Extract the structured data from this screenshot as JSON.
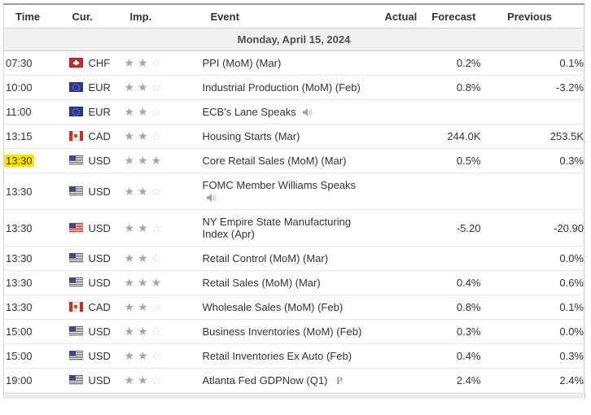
{
  "table": {
    "columns": {
      "time": "Time",
      "cur": "Cur.",
      "imp": "Imp.",
      "event": "Event",
      "actual": "Actual",
      "forecast": "Forecast",
      "previous": "Previous"
    },
    "date_header": "Monday, April 15, 2024",
    "rows": [
      {
        "time": "07:30",
        "highlight": false,
        "flag": "chf",
        "currency": "CHF",
        "importance": 2,
        "event": "PPI (MoM) (Mar)",
        "icon": "",
        "icon_break": false,
        "actual": "",
        "forecast": "0.2%",
        "previous": "0.1%"
      },
      {
        "time": "10:00",
        "highlight": false,
        "flag": "eur",
        "currency": "EUR",
        "importance": 2,
        "event": "Industrial Production (MoM) (Feb)",
        "icon": "",
        "icon_break": false,
        "actual": "",
        "forecast": "0.8%",
        "previous": "-3.2%"
      },
      {
        "time": "11:00",
        "highlight": false,
        "flag": "eur",
        "currency": "EUR",
        "importance": 2,
        "event": "ECB's Lane Speaks",
        "icon": "speaker",
        "icon_break": false,
        "actual": "",
        "forecast": "",
        "previous": ""
      },
      {
        "time": "13:15",
        "highlight": false,
        "flag": "cad",
        "currency": "CAD",
        "importance": 2,
        "event": "Housing Starts (Mar)",
        "icon": "",
        "icon_break": false,
        "actual": "",
        "forecast": "244.0K",
        "previous": "253.5K"
      },
      {
        "time": "13:30",
        "highlight": true,
        "flag": "usd",
        "currency": "USD",
        "importance": 3,
        "event": "Core Retail Sales (MoM) (Mar)",
        "icon": "",
        "icon_break": false,
        "actual": "",
        "forecast": "0.5%",
        "previous": "0.3%"
      },
      {
        "time": "13:30",
        "highlight": false,
        "flag": "usd",
        "currency": "USD",
        "importance": 2,
        "event": "FOMC Member Williams Speaks",
        "icon": "speaker",
        "icon_break": true,
        "actual": "",
        "forecast": "",
        "previous": ""
      },
      {
        "time": "13:30",
        "highlight": false,
        "flag": "usd",
        "currency": "USD",
        "importance": 2,
        "event": "NY Empire State Manufacturing Index (Apr)",
        "icon": "",
        "icon_break": false,
        "actual": "",
        "forecast": "-5.20",
        "previous": "-20.90"
      },
      {
        "time": "13:30",
        "highlight": false,
        "flag": "usd",
        "currency": "USD",
        "importance": 2,
        "event": "Retail Control (MoM) (Mar)",
        "icon": "",
        "icon_break": false,
        "actual": "",
        "forecast": "",
        "previous": "0.0%"
      },
      {
        "time": "13:30",
        "highlight": false,
        "flag": "usd",
        "currency": "USD",
        "importance": 3,
        "event": "Retail Sales (MoM) (Mar)",
        "icon": "",
        "icon_break": false,
        "actual": "",
        "forecast": "0.4%",
        "previous": "0.6%"
      },
      {
        "time": "13:30",
        "highlight": false,
        "flag": "cad",
        "currency": "CAD",
        "importance": 2,
        "event": "Wholesale Sales (MoM) (Feb)",
        "icon": "",
        "icon_break": false,
        "actual": "",
        "forecast": "0.8%",
        "previous": "0.1%"
      },
      {
        "time": "15:00",
        "highlight": false,
        "flag": "usd",
        "currency": "USD",
        "importance": 2,
        "event": "Business Inventories (MoM) (Feb)",
        "icon": "",
        "icon_break": false,
        "actual": "",
        "forecast": "0.3%",
        "previous": "0.0%"
      },
      {
        "time": "15:00",
        "highlight": false,
        "flag": "usd",
        "currency": "USD",
        "importance": 2,
        "event": "Retail Inventories Ex Auto (Feb)",
        "icon": "",
        "icon_break": false,
        "actual": "",
        "forecast": "0.4%",
        "previous": "0.3%"
      },
      {
        "time": "19:00",
        "highlight": false,
        "flag": "usd",
        "currency": "USD",
        "importance": 2,
        "event": "Atlanta Fed GDPNow (Q1)",
        "icon": "preliminary",
        "icon_break": false,
        "actual": "",
        "forecast": "2.4%",
        "previous": "2.4%"
      }
    ],
    "icons": {
      "speaker": "speaker-icon",
      "preliminary": "preliminary-icon",
      "preliminary_glyph": "P",
      "star_filled": "★",
      "star_empty": "☆"
    },
    "colors": {
      "highlight_yellow": "#ffe400",
      "star_filled": "#a6a6a6",
      "star_empty": "#d4d4d4",
      "date_band_bg": "#f1f1f1",
      "row_border": "#e6e6e6",
      "flag_red": "#d52b1e",
      "flag_navy": "#2b3a90",
      "usd_canton": "#3f4a8c"
    }
  }
}
